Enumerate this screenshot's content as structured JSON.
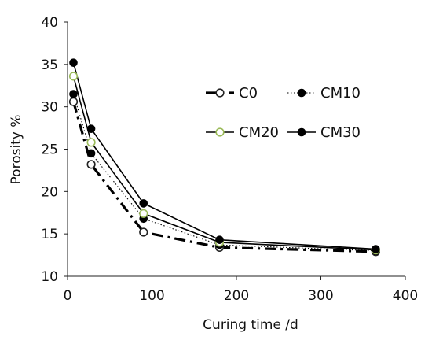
{
  "chart_data": {
    "type": "line",
    "xlabel": "Curing time /d",
    "ylabel": "Porosity %",
    "xlim": [
      0,
      400
    ],
    "ylim": [
      10,
      40
    ],
    "x_ticks": [
      0,
      100,
      200,
      300,
      400
    ],
    "y_ticks": [
      10,
      15,
      20,
      25,
      30,
      35,
      40
    ],
    "grid": false,
    "legend_position": "center-right",
    "series": [
      {
        "name": "C0",
        "x": [
          7,
          28,
          90,
          180,
          365
        ],
        "y": [
          30.6,
          23.2,
          15.2,
          13.4,
          12.9
        ],
        "marker": "open-circle",
        "line_style": "dash-dot",
        "color": "#000000"
      },
      {
        "name": "CM10",
        "x": [
          7,
          28,
          90,
          180,
          365
        ],
        "y": [
          31.5,
          24.5,
          16.8,
          13.7,
          13.0
        ],
        "marker": "filled-circle",
        "line_style": "dotted",
        "color": "#000000"
      },
      {
        "name": "CM20",
        "x": [
          7,
          28,
          90,
          180,
          365
        ],
        "y": [
          33.6,
          25.8,
          17.4,
          14.0,
          13.1
        ],
        "marker": "open-circle-green",
        "line_style": "solid",
        "color": "#000000"
      },
      {
        "name": "CM30",
        "x": [
          7,
          28,
          90,
          180,
          365
        ],
        "y": [
          35.2,
          27.4,
          18.6,
          14.3,
          13.2
        ],
        "marker": "filled-circle",
        "line_style": "solid",
        "color": "#000000"
      }
    ]
  }
}
